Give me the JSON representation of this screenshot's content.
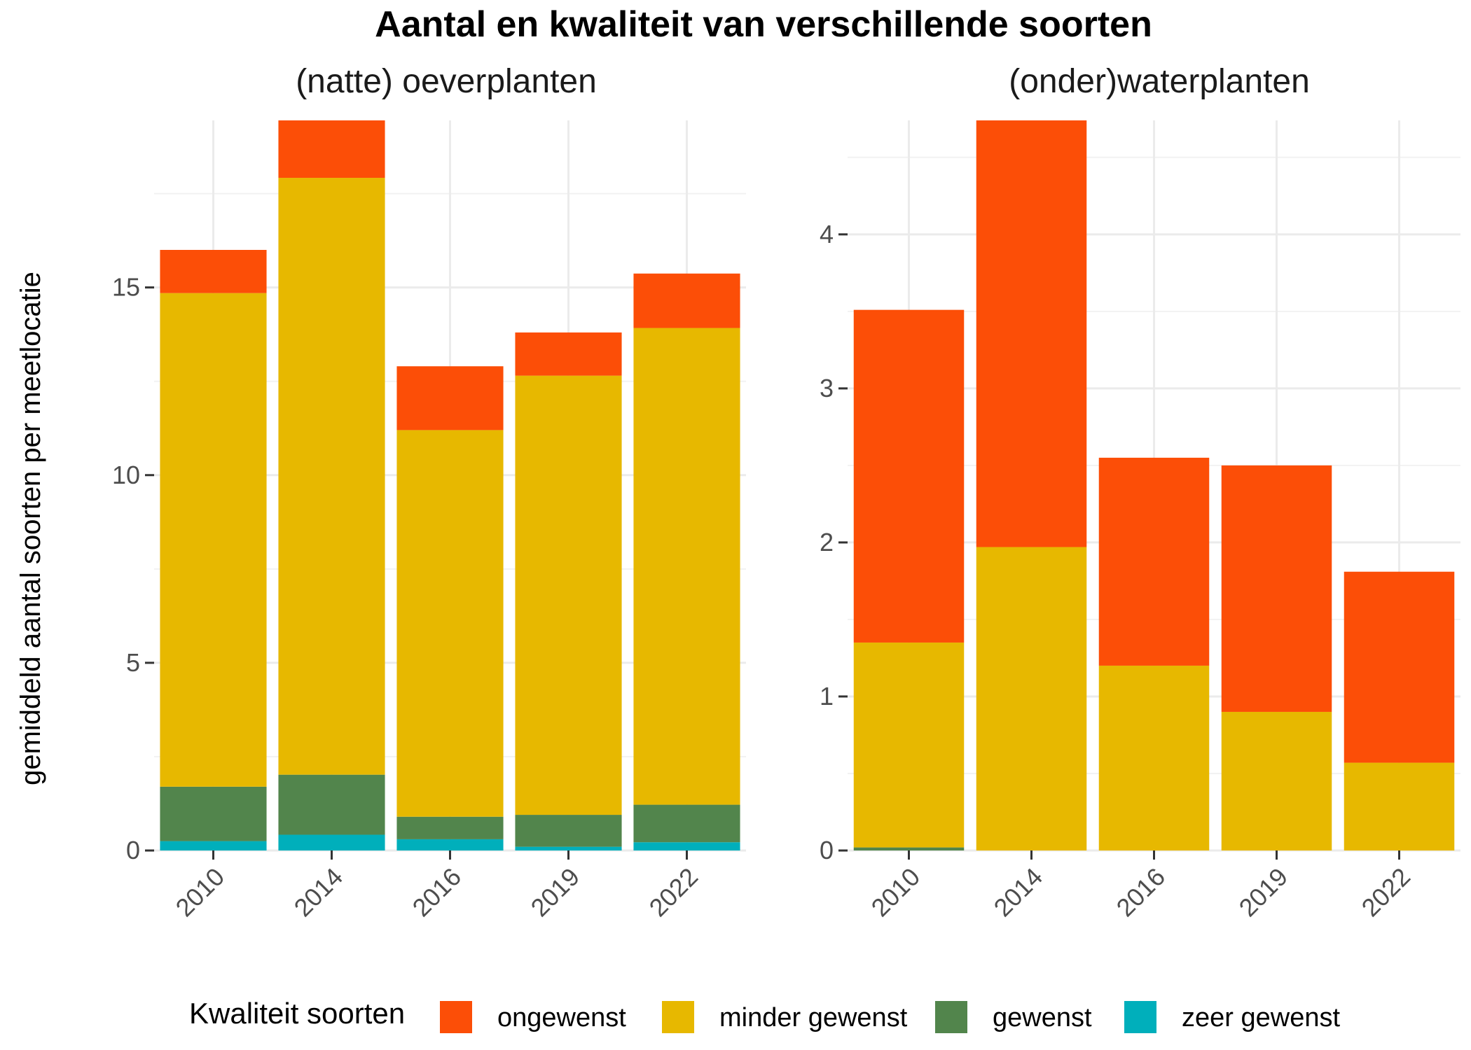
{
  "chart_data": {
    "title": "Aantal en kwaliteit van verschillende soorten",
    "ylabel": "gemiddeld aantal soorten per meetlocatie",
    "colors": {
      "ongewenst": "#FC4E07",
      "minder gewenst": "#E7B800",
      "gewenst": "#52854C",
      "zeer gewenst": "#00AFBB"
    },
    "legend": {
      "title": "Kwaliteit soorten",
      "position": "bottom",
      "items": [
        "ongewenst",
        "minder gewenst",
        "gewenst",
        "zeer gewenst"
      ]
    },
    "panels": [
      {
        "type": "bar",
        "stacked": true,
        "title": "(natte) oeverplanten",
        "categories": [
          "2010",
          "2014",
          "2016",
          "2019",
          "2022"
        ],
        "ylim": [
          0,
          19.45
        ],
        "yticks": [
          0,
          5,
          10,
          15
        ],
        "series": [
          {
            "name": "zeer gewenst",
            "values": [
              0.25,
              0.42,
              0.3,
              0.1,
              0.22
            ]
          },
          {
            "name": "gewenst",
            "values": [
              1.45,
              1.6,
              0.6,
              0.85,
              1.0
            ]
          },
          {
            "name": "minder gewenst",
            "values": [
              13.15,
              15.9,
              10.3,
              11.7,
              12.7
            ]
          },
          {
            "name": "ongewenst",
            "values": [
              1.15,
              1.53,
              1.7,
              1.15,
              1.45
            ]
          }
        ]
      },
      {
        "type": "bar",
        "stacked": true,
        "title": "(onder)waterplanten",
        "categories": [
          "2010",
          "2014",
          "2016",
          "2019",
          "2022"
        ],
        "ylim": [
          0,
          4.74
        ],
        "yticks": [
          0,
          1,
          2,
          3,
          4
        ],
        "series": [
          {
            "name": "zeer gewenst",
            "values": [
              0,
              0,
              0,
              0,
              0
            ]
          },
          {
            "name": "gewenst",
            "values": [
              0.02,
              0,
              0,
              0,
              0
            ]
          },
          {
            "name": "minder gewenst",
            "values": [
              1.33,
              1.97,
              1.2,
              0.9,
              0.57
            ]
          },
          {
            "name": "ongewenst",
            "values": [
              2.16,
              2.77,
              1.35,
              1.6,
              1.24
            ]
          }
        ]
      }
    ]
  }
}
